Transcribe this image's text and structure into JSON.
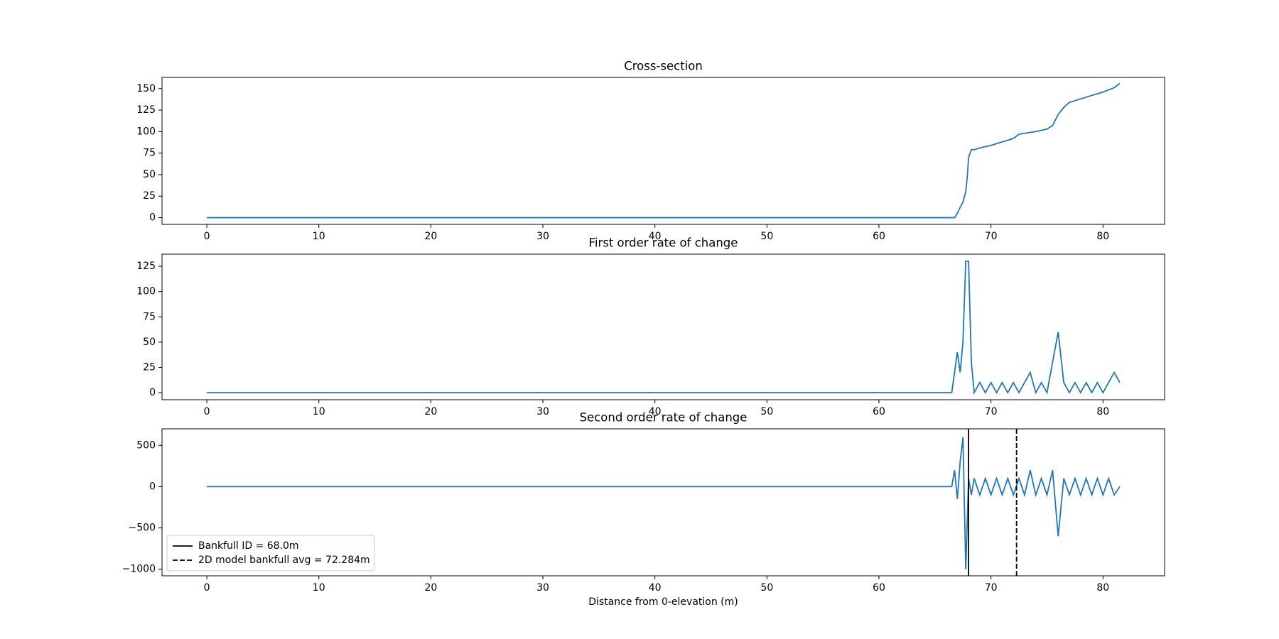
{
  "chart_data": [
    {
      "type": "line",
      "title": "Cross-section",
      "x": [
        0,
        66.75,
        67,
        67.25,
        67.5,
        67.75,
        67.9,
        68,
        68.25,
        68.5,
        69,
        70,
        71,
        72,
        72.5,
        73,
        74,
        75,
        75.5,
        76,
        76.5,
        77,
        78,
        79,
        80,
        81,
        81.5
      ],
      "series": [
        {
          "color": "#1f77b4",
          "values": [
            0,
            0,
            5,
            12,
            18,
            30,
            50,
            70,
            79,
            79,
            81,
            84,
            88,
            92,
            97,
            98,
            100,
            103,
            107,
            120,
            128,
            134,
            138,
            142,
            146,
            151,
            156
          ]
        }
      ],
      "xlim": [
        -4,
        85.5
      ],
      "xticks": [
        0,
        10,
        20,
        30,
        40,
        50,
        60,
        70,
        80
      ],
      "ylim": [
        -7.8,
        163
      ],
      "yticks": [
        0,
        25,
        50,
        75,
        100,
        125,
        150
      ]
    },
    {
      "type": "line",
      "title": "First order rate of change",
      "x": [
        0,
        66.5,
        66.75,
        67,
        67.25,
        67.5,
        67.75,
        68,
        68.25,
        68.5,
        69,
        69.5,
        70,
        70.5,
        71,
        71.5,
        72,
        72.5,
        73,
        73.5,
        74,
        74.5,
        75,
        75.5,
        76,
        76.5,
        77,
        77.5,
        78,
        78.5,
        79,
        79.5,
        80,
        80.5,
        81,
        81.5
      ],
      "series": [
        {
          "color": "#1f77b4",
          "values": [
            0,
            0,
            20,
            40,
            20,
            50,
            130,
            130,
            30,
            0,
            10,
            0,
            10,
            0,
            10,
            0,
            10,
            0,
            10,
            20,
            0,
            10,
            0,
            30,
            60,
            10,
            0,
            10,
            0,
            10,
            0,
            10,
            0,
            10,
            20,
            10
          ]
        }
      ],
      "xlim": [
        -4,
        85.5
      ],
      "xticks": [
        0,
        10,
        20,
        30,
        40,
        50,
        60,
        70,
        80
      ],
      "ylim": [
        -7,
        137
      ],
      "yticks": [
        0,
        25,
        50,
        75,
        100,
        125
      ]
    },
    {
      "type": "line",
      "title": "Second order rate of change",
      "xlabel": "Distance from 0-elevation (m)",
      "x": [
        0,
        66.5,
        66.75,
        67,
        67.25,
        67.5,
        67.75,
        68,
        68.25,
        68.5,
        69,
        69.5,
        70,
        70.5,
        71,
        71.5,
        72,
        72.5,
        73,
        73.5,
        74,
        74.5,
        75,
        75.5,
        76,
        76.5,
        77,
        77.5,
        78,
        78.5,
        79,
        79.5,
        80,
        80.5,
        81,
        81.5
      ],
      "series": [
        {
          "color": "#1f77b4",
          "values": [
            0,
            0,
            200,
            -150,
            300,
            600,
            -1000,
            100,
            -100,
            100,
            -100,
            100,
            -100,
            100,
            -100,
            100,
            -100,
            100,
            -100,
            200,
            -100,
            100,
            -100,
            200,
            -600,
            100,
            -100,
            100,
            -100,
            100,
            -100,
            100,
            -100,
            100,
            -100,
            0
          ]
        }
      ],
      "vlines": [
        {
          "x": 68.0,
          "name": "Bankfull ID = 68.0m",
          "style": "solid",
          "color": "#000000"
        },
        {
          "x": 72.284,
          "name": "2D model bankfull avg = 72.284m",
          "style": "dashed",
          "color": "#000000"
        }
      ],
      "legend": "lower left",
      "xlim": [
        -4,
        85.5
      ],
      "xticks": [
        0,
        10,
        20,
        30,
        40,
        50,
        60,
        70,
        80
      ],
      "ylim": [
        -1080,
        700
      ],
      "yticks": [
        {
          "value": -1000,
          "label": "−1000"
        },
        {
          "value": -500,
          "label": "−500"
        },
        0,
        500
      ]
    }
  ]
}
